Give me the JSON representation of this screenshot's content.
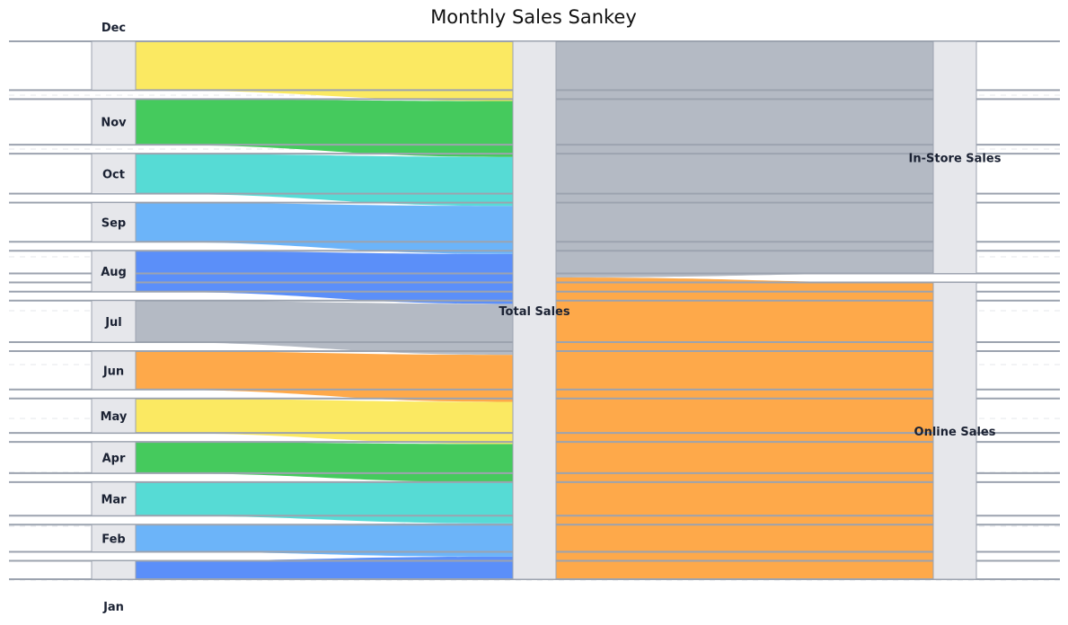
{
  "chart_data": {
    "type": "sankey",
    "title": "Monthly Sales Sankey",
    "source_nodes": [
      "Jan",
      "Feb",
      "Mar",
      "Apr",
      "May",
      "Jun",
      "Jul",
      "Aug",
      "Sep",
      "Oct",
      "Nov",
      "Dec"
    ],
    "middle_node": "Total Sales",
    "target_nodes": [
      "In-Store Sales",
      "Online Sales"
    ],
    "values": [
      23,
      34,
      42,
      39,
      43,
      48,
      52,
      51,
      49,
      50,
      57,
      61
    ],
    "split": {
      "In-Store Sales": 241,
      "Online Sales": 308
    },
    "colors": {
      "Jan": "#5b8ff9",
      "Feb": "#6cb4f9",
      "Mar": "#56dbd5",
      "Apr": "#45ca5d",
      "May": "#fbe962",
      "Jun": "#fea94a",
      "Jul": "#b4bac4",
      "Aug": "#5b8ff9",
      "Sep": "#6cb4f9",
      "Oct": "#56dbd5",
      "Nov": "#45ca5d",
      "Dec": "#fbe962",
      "In-Store Sales": "#b4bac4",
      "Online Sales": "#fea94a",
      "node_fill": "#e6e7eb",
      "node_stroke": "#9ca3af"
    }
  }
}
